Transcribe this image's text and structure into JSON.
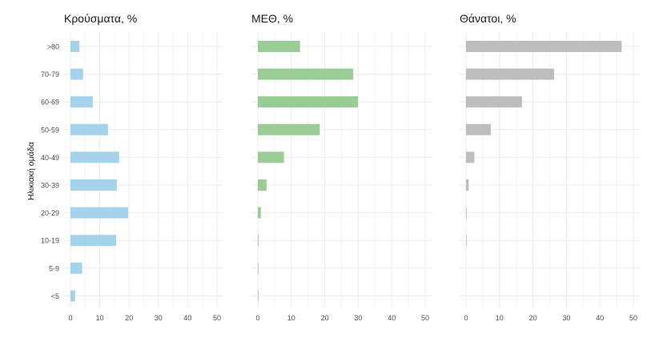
{
  "chart_data": {
    "type": "bar",
    "orientation": "horizontal",
    "ylabel": "Ηλικιακή ομάδα",
    "categories": [
      "<5",
      "5-9",
      "10-19",
      "20-29",
      "30-39",
      "40-49",
      "50-59",
      "60-69",
      "70-79",
      ">80"
    ],
    "xticks": [
      "0",
      "10",
      "20",
      "30",
      "40",
      "50"
    ],
    "grid": true,
    "panels": [
      {
        "title": "Κρούσματα, %",
        "color": "#a6d3ec",
        "xlim": [
          0,
          52
        ],
        "values": [
          1.6,
          4.0,
          15.6,
          19.7,
          15.8,
          16.6,
          12.8,
          7.6,
          4.3,
          3.0
        ]
      },
      {
        "title": "ΜΕΘ, %",
        "color": "#9acd95",
        "xlim": [
          0,
          52
        ],
        "values": [
          0.1,
          0.1,
          0.2,
          0.9,
          2.6,
          7.8,
          18.5,
          29.9,
          28.5,
          12.6
        ]
      },
      {
        "title": "Θάνατοι, %",
        "color": "#bdbdbd",
        "xlim": [
          0,
          52
        ],
        "values": [
          0.0,
          0.0,
          0.1,
          0.2,
          0.8,
          2.5,
          7.4,
          16.7,
          26.3,
          46.5
        ]
      }
    ]
  }
}
